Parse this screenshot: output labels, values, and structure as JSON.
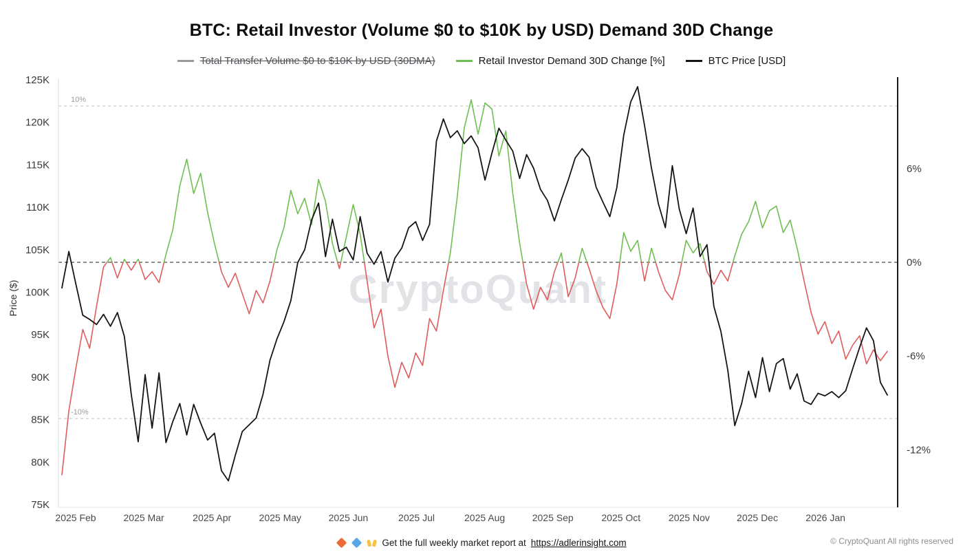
{
  "title": "BTC: Retail Investor (Volume $0 to $10K by USD) Demand 30D Change",
  "legend": {
    "items": [
      {
        "label": "Total Transfer Volume $0 to $10K by USD (30DMA)",
        "color": "#9a9a9a",
        "disabled": true
      },
      {
        "label": "Retail Investor Demand 30D Change [%]",
        "color": "#6fbf50",
        "disabled": false
      },
      {
        "label": "BTC Price [USD]",
        "color": "#141414",
        "disabled": false
      }
    ]
  },
  "left_axis": {
    "title": "Price ($)",
    "ticks": [
      "125K",
      "120K",
      "115K",
      "110K",
      "105K",
      "100K",
      "95K",
      "90K",
      "85K",
      "80K",
      "75K"
    ],
    "tick_values": [
      125,
      120,
      115,
      110,
      105,
      100,
      95,
      90,
      85,
      80,
      75
    ]
  },
  "right_axis": {
    "ticks": [
      "6%",
      "0%",
      "-6%",
      "-12%"
    ],
    "tick_values": [
      6,
      0,
      -6,
      -12
    ]
  },
  "x_axis": {
    "labels": [
      "2025 Feb",
      "2025 Mar",
      "2025 Apr",
      "2025 May",
      "2025 Jun",
      "2025 Jul",
      "2025 Aug",
      "2025 Sep",
      "2025 Oct",
      "2025 Nov",
      "2025 Dec",
      "2026 Jan"
    ]
  },
  "annotations": {
    "upper_dashed": "10%",
    "lower_dashed": "-10%"
  },
  "watermark": "CryptoQuant",
  "footer": {
    "promo_text": "Get the full weekly market report at",
    "promo_link": "https://adlerinsight.com",
    "copyright": "© CryptoQuant All rights reserved"
  },
  "chart_data": {
    "type": "line",
    "title": "BTC: Retail Investor (Volume $0 to $10K by USD) Demand 30D Change",
    "xlabel": "",
    "ylabel_left": "Price ($)",
    "ylabel_right": "Demand 30D Change [%]",
    "x_range": [
      "2025 Feb",
      "2026 Jan"
    ],
    "categories": [
      "2025 Feb",
      "2025 Mar",
      "2025 Apr",
      "2025 May",
      "2025 Jun",
      "2025 Jul",
      "2025 Aug",
      "2025 Sep",
      "2025 Oct",
      "2025 Nov",
      "2025 Dec",
      "2026 Jan"
    ],
    "sampling": "approx. every 3 days, 10 points per month",
    "left_ylim": [
      75000,
      125000
    ],
    "right_axis_ticks": [
      6,
      0,
      -6,
      -12
    ],
    "dashed_levels": [
      10,
      0,
      -10
    ],
    "grid": "off",
    "legend_position": "top-center",
    "series": [
      {
        "name": "BTC Price [USD]",
        "axis": "left",
        "unit": "thousand USD",
        "color": "#141414",
        "values": [
          100.5,
          104.8,
          101.0,
          97.3,
          96.8,
          96.2,
          97.4,
          96.0,
          97.6,
          94.8,
          88.0,
          82.4,
          90.3,
          84.0,
          90.5,
          82.3,
          84.8,
          86.9,
          83.2,
          86.8,
          84.6,
          82.6,
          83.4,
          79.0,
          77.8,
          80.8,
          83.6,
          84.4,
          85.2,
          88.0,
          92.0,
          94.5,
          96.5,
          99.0,
          103.5,
          105.0,
          108.5,
          110.5,
          104.2,
          108.6,
          104.8,
          105.3,
          103.8,
          108.9,
          104.6,
          103.3,
          104.8,
          101.2,
          104.0,
          105.2,
          107.6,
          108.3,
          106.1,
          108.0,
          117.8,
          120.4,
          118.2,
          119.0,
          117.5,
          118.4,
          117.0,
          113.2,
          116.4,
          119.3,
          117.9,
          116.6,
          113.4,
          116.2,
          114.6,
          112.1,
          110.8,
          108.4,
          110.9,
          113.2,
          115.8,
          116.9,
          115.9,
          112.4,
          110.6,
          108.9,
          112.3,
          118.5,
          122.4,
          124.2,
          119.6,
          114.6,
          110.4,
          107.6,
          114.9,
          109.8,
          106.9,
          109.9,
          104.2,
          105.6,
          98.3,
          95.4,
          90.8,
          84.3,
          86.9,
          90.7,
          87.6,
          92.3,
          88.3,
          91.6,
          92.2,
          88.6,
          90.4,
          87.2,
          86.8,
          88.1,
          87.8,
          88.3,
          87.6,
          88.4,
          91.0,
          93.5,
          95.8,
          94.3,
          89.4,
          87.9
        ]
      },
      {
        "name": "Retail Investor Demand 30D Change [%]",
        "axis": "right",
        "unit": "%",
        "color_positive": "#6fbf50",
        "color_negative": "#e05c5c",
        "values": [
          -13.6,
          -9.5,
          -6.8,
          -4.3,
          -5.5,
          -2.8,
          -0.3,
          0.3,
          -1.0,
          0.2,
          -0.5,
          0.2,
          -1.1,
          -0.6,
          -1.3,
          0.5,
          2.1,
          4.9,
          6.6,
          4.4,
          5.7,
          3.2,
          1.2,
          -0.6,
          -1.6,
          -0.7,
          -2.0,
          -3.3,
          -1.8,
          -2.6,
          -1.2,
          0.8,
          2.2,
          4.6,
          3.1,
          4.1,
          2.4,
          5.3,
          3.9,
          1.2,
          -0.4,
          1.6,
          3.7,
          1.8,
          -1.2,
          -4.2,
          -3.0,
          -6.0,
          -8.0,
          -6.4,
          -7.4,
          -5.8,
          -6.6,
          -3.6,
          -4.4,
          -1.8,
          0.6,
          4.2,
          8.6,
          10.4,
          8.2,
          10.2,
          9.8,
          6.8,
          8.4,
          4.4,
          1.2,
          -1.4,
          -3.0,
          -1.6,
          -2.4,
          -0.6,
          0.6,
          -2.2,
          -1.0,
          0.9,
          -0.4,
          -1.8,
          -2.9,
          -3.6,
          -1.4,
          1.9,
          0.7,
          1.4,
          -1.2,
          0.9,
          -0.6,
          -1.8,
          -2.4,
          -0.8,
          1.4,
          0.6,
          1.2,
          -0.6,
          -1.4,
          -0.5,
          -1.2,
          0.4,
          1.8,
          2.6,
          3.9,
          2.2,
          3.3,
          3.6,
          1.9,
          2.7,
          0.9,
          -1.2,
          -3.2,
          -4.6,
          -3.8,
          -5.2,
          -4.4,
          -6.2,
          -5.3,
          -4.7,
          -6.5,
          -5.6,
          -6.3,
          -5.7
        ]
      }
    ]
  }
}
